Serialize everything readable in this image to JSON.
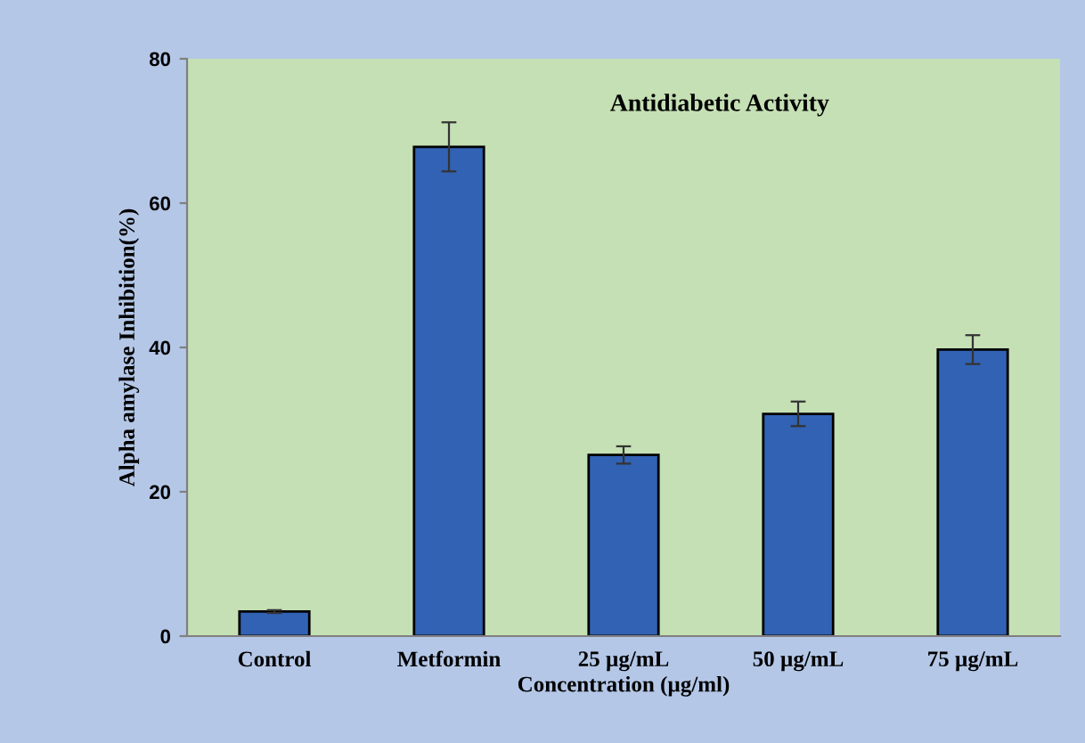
{
  "chart_data": {
    "type": "bar",
    "title": "Antidiabetic Activity",
    "xlabel": "Concentration (µg/ml)",
    "ylabel": "Alpha amylase Inhibition(%)",
    "categories": [
      "Control",
      "Metformin",
      "25 µg/mL",
      "50 µg/mL",
      "75 µg/mL"
    ],
    "values": [
      3.4,
      67.8,
      25.1,
      30.8,
      39.7
    ],
    "errors": [
      0.2,
      3.4,
      1.2,
      1.7,
      2.0
    ],
    "color": "#3262b4",
    "ylim": [
      0,
      80
    ],
    "yticks": [
      0,
      20,
      40,
      60,
      80
    ],
    "grid": false,
    "legend": false
  }
}
